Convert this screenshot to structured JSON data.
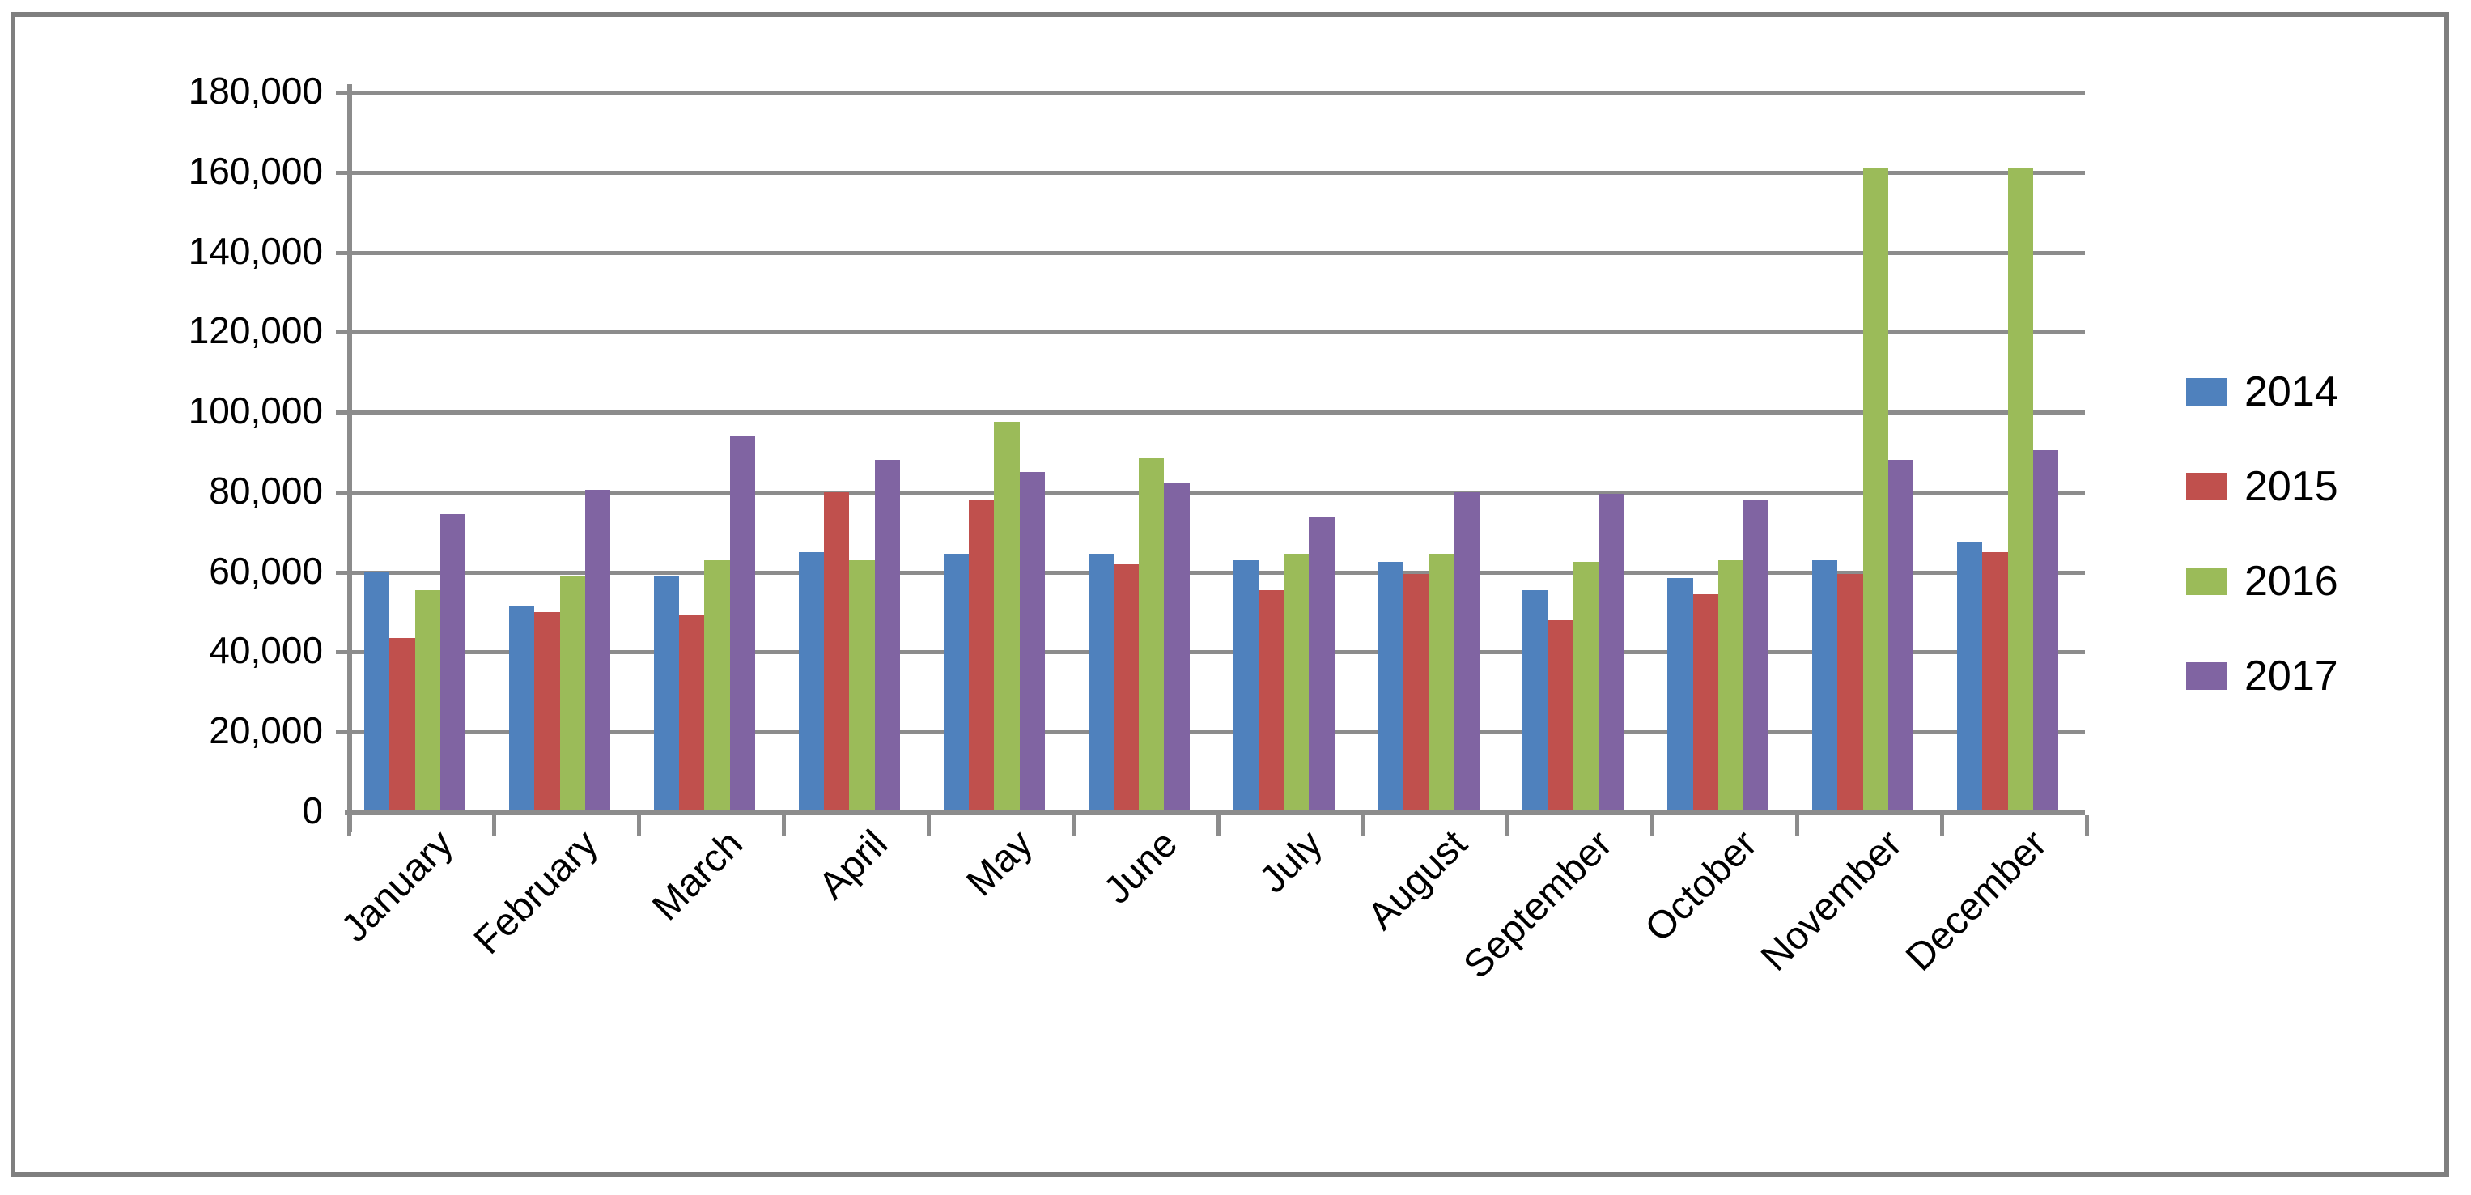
{
  "chart_data": {
    "type": "bar",
    "title": "",
    "xlabel": "",
    "ylabel": "",
    "categories": [
      "January",
      "February",
      "March",
      "April",
      "May",
      "June",
      "July",
      "August",
      "September",
      "October",
      "November",
      "December"
    ],
    "series": [
      {
        "name": "2014",
        "color": "#4F81BD",
        "values": [
          60000,
          51500,
          59000,
          65000,
          64500,
          64500,
          63000,
          62500,
          55500,
          58500,
          63000,
          67500
        ]
      },
      {
        "name": "2015",
        "color": "#C0504D",
        "values": [
          43500,
          50000,
          49500,
          80000,
          78000,
          62000,
          55500,
          59500,
          48000,
          54500,
          59500,
          65000
        ]
      },
      {
        "name": "2016",
        "color": "#9BBB59",
        "values": [
          55500,
          59000,
          63000,
          63000,
          97500,
          88500,
          64500,
          64500,
          62500,
          63000,
          161000,
          161000
        ]
      },
      {
        "name": "2017",
        "color": "#8064A2",
        "values": [
          74500,
          80500,
          94000,
          88000,
          85000,
          82500,
          74000,
          80000,
          79500,
          78000,
          88000,
          90500
        ]
      }
    ],
    "ylim": [
      0,
      180000
    ],
    "ytick_step": 20000,
    "ytick_labels": [
      "0",
      "20,000",
      "40,000",
      "60,000",
      "80,000",
      "100,000",
      "120,000",
      "140,000",
      "160,000",
      "180,000"
    ],
    "grid": true,
    "legend_position": "right",
    "bar_gap_within_group": 0
  },
  "colors": {
    "background": "#FFFFFF",
    "border": "#7F7F7F",
    "gridline": "#8C8C8C",
    "axis": "#8C8C8C",
    "text": "#000000"
  }
}
